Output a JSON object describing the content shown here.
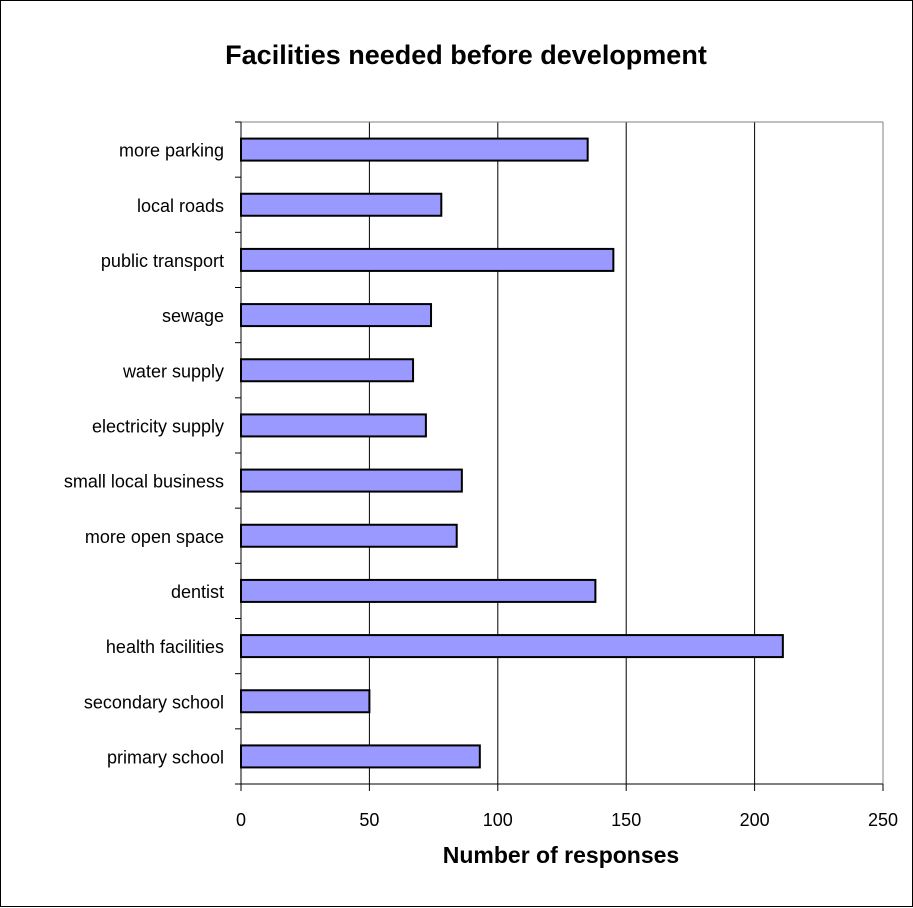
{
  "chart_data": {
    "type": "bar",
    "orientation": "horizontal",
    "title": "Facilities needed before development",
    "xlabel": "Number of responses",
    "ylabel": "",
    "xlim": [
      0,
      250
    ],
    "xticks": [
      "0",
      "50",
      "100",
      "150",
      "200",
      "250"
    ],
    "grid": true,
    "legend": "none",
    "categories": [
      "more parking",
      "local roads",
      "public transport",
      "sewage",
      "water supply",
      "electricity supply",
      "small local business",
      "more open space",
      "dentist",
      "health facilities",
      "secondary school",
      "primary school"
    ],
    "values": [
      135,
      78,
      145,
      74,
      67,
      72,
      86,
      84,
      138,
      211,
      50,
      93
    ],
    "colors": {
      "bar_fill": "#9999ff",
      "bar_stroke": "#000000",
      "grid": "#000000",
      "axis": "#000000",
      "frame": "#808080"
    }
  }
}
